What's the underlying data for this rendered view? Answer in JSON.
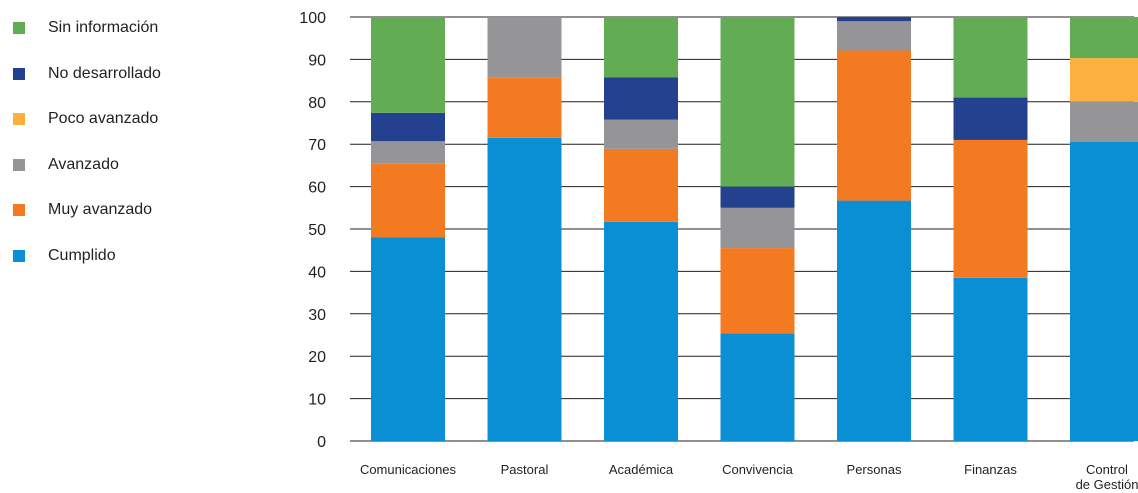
{
  "chart_data": {
    "type": "bar",
    "stacked": true,
    "categories": [
      "Comunicaciones",
      "Pastoral",
      "Académica",
      "Convivencia",
      "Personas",
      "Finanzas",
      "Control de Gestión"
    ],
    "category_lines": [
      [
        "Comunicaciones"
      ],
      [
        "Pastoral"
      ],
      [
        "Académica"
      ],
      [
        "Convivencia"
      ],
      [
        "Personas"
      ],
      [
        "Finanzas"
      ],
      [
        "Control",
        "de Gestión"
      ]
    ],
    "series": [
      {
        "name": "Cumplido",
        "color": "#0a8fd5",
        "values": [
          48,
          71.5,
          51.7,
          25.4,
          56.7,
          38.5,
          70.6
        ]
      },
      {
        "name": "Muy avanzado",
        "color": "#f47a22",
        "values": [
          17.4,
          14.2,
          17.2,
          20.1,
          35.4,
          32.5,
          0
        ]
      },
      {
        "name": "Avanzado",
        "color": "#959598",
        "values": [
          5.3,
          14.3,
          6.9,
          9.5,
          6.9,
          0,
          9.4
        ]
      },
      {
        "name": "Poco avanzado",
        "color": "#fbb040",
        "values": [
          0,
          0,
          0,
          0,
          0,
          0,
          10.3
        ]
      },
      {
        "name": "No desarrollado",
        "color": "#23418f",
        "values": [
          6.7,
          0,
          10,
          5,
          1,
          10,
          0
        ]
      },
      {
        "name": "Sin información",
        "color": "#62ad53",
        "values": [
          22.6,
          0,
          14.2,
          40,
          0,
          19,
          9.7
        ]
      }
    ],
    "legend_order": [
      "Sin información",
      "No desarrollado",
      "Poco avanzado",
      "Avanzado",
      "Muy avanzado",
      "Cumplido"
    ],
    "ylim": [
      0,
      100
    ],
    "yticks": [
      0,
      10,
      20,
      30,
      40,
      50,
      60,
      70,
      80,
      90,
      100
    ],
    "grid": true,
    "legend_position": "left",
    "title": "",
    "xlabel": "",
    "ylabel": ""
  }
}
